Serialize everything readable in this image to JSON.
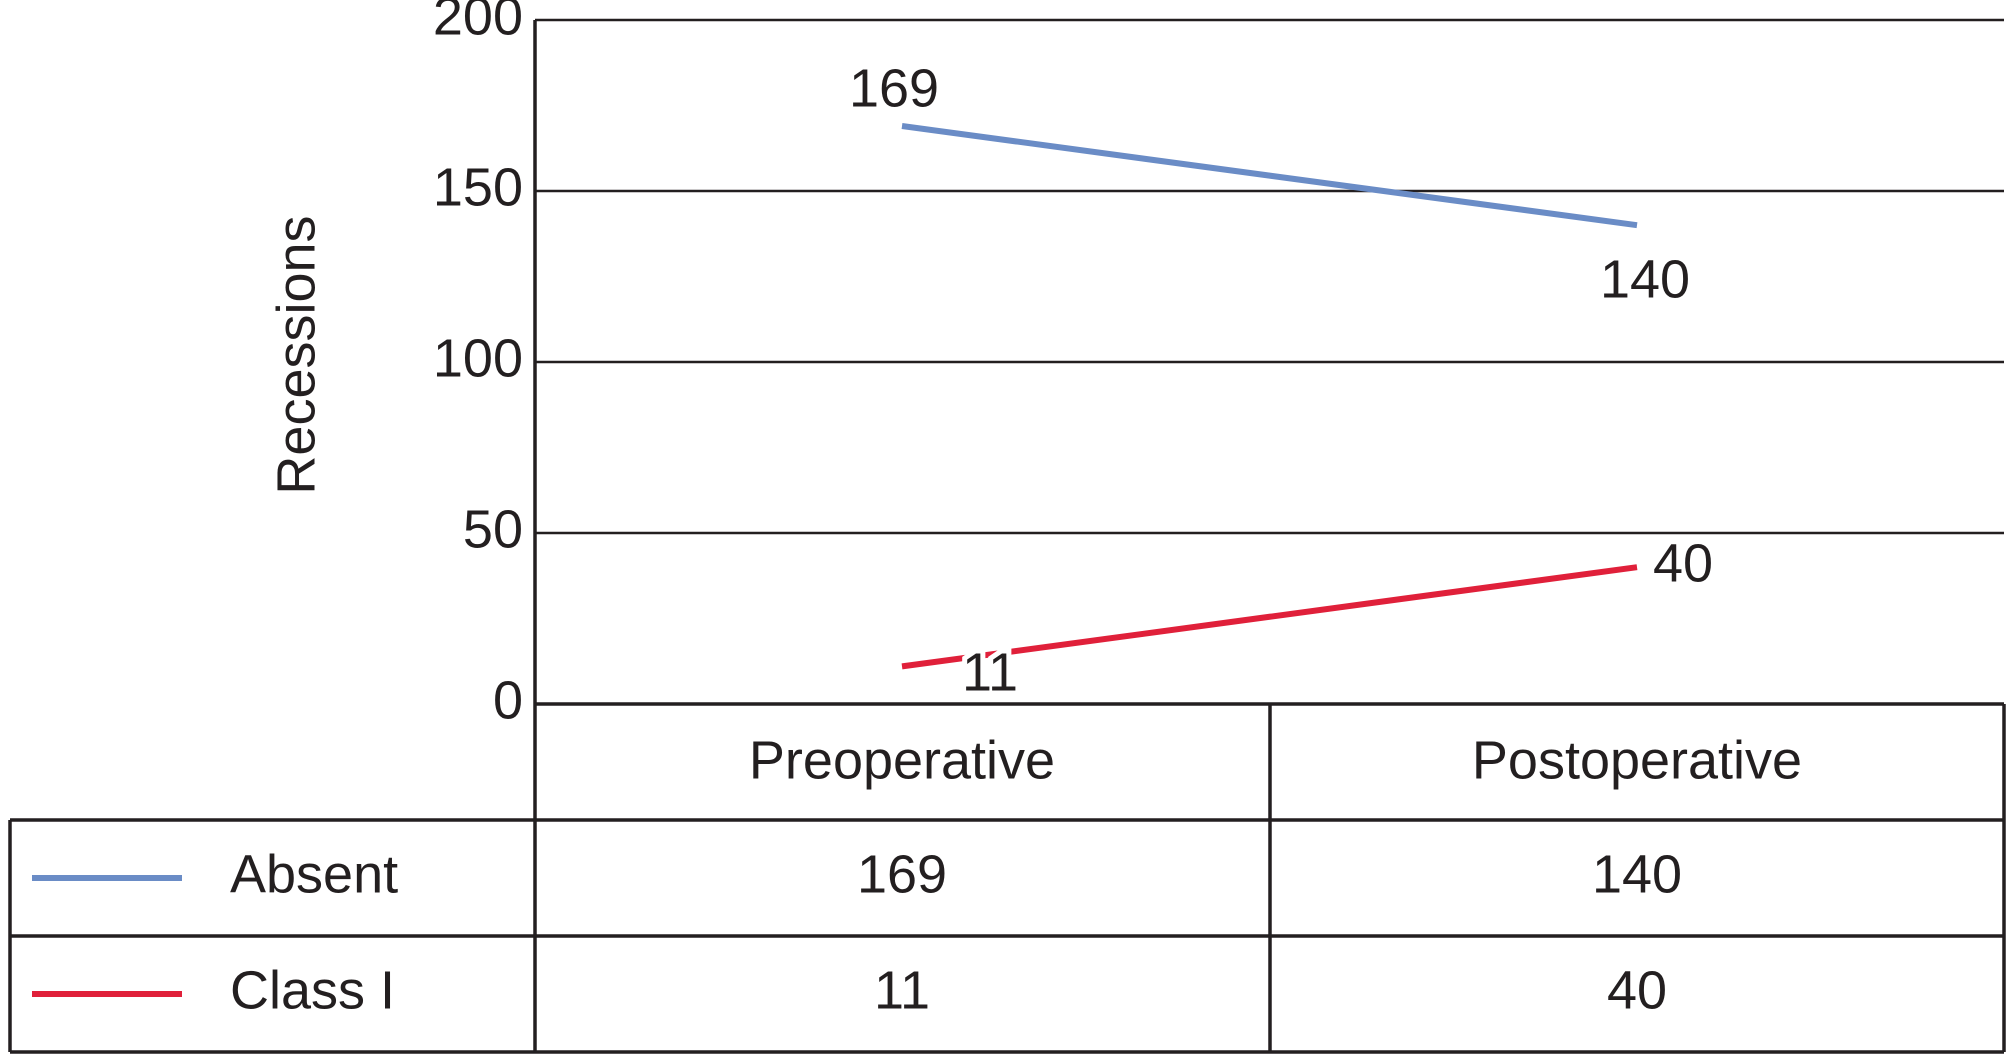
{
  "chart_data": {
    "type": "line",
    "y_label": "Recessions",
    "categories": [
      "Preoperative",
      "Postoperative"
    ],
    "series": [
      {
        "name": "Absent",
        "color": "#6a8cc6",
        "values": [
          169,
          140
        ]
      },
      {
        "name": "Class I",
        "color": "#e0203a",
        "values": [
          11,
          40
        ]
      }
    ],
    "ylim": [
      0,
      200
    ],
    "yticks": [
      0,
      50,
      100,
      150,
      200
    ],
    "grid": true
  }
}
